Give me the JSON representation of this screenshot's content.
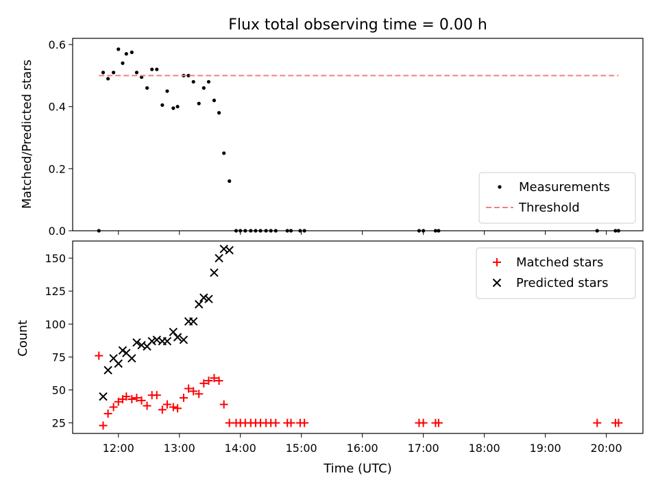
{
  "chart_data": [
    {
      "type": "scatter",
      "title": "Flux total observing time = 0.00 h",
      "ylabel": "Matched/Predicted stars",
      "xlabel": "",
      "ylim": [
        0,
        0.62
      ],
      "xlim": [
        11.25,
        20.6
      ],
      "yticks": [
        0.0,
        0.2,
        0.4,
        0.6
      ],
      "ytick_labels": [
        "0.0",
        "0.2",
        "0.4",
        "0.6"
      ],
      "legend_position": "lower-right",
      "series": [
        {
          "name": "Measurements",
          "marker": "dot",
          "color": "#000000",
          "points": [
            [
              11.68,
              0.0
            ],
            [
              11.75,
              0.51
            ],
            [
              11.83,
              0.49
            ],
            [
              11.92,
              0.51
            ],
            [
              12.0,
              0.585
            ],
            [
              12.07,
              0.54
            ],
            [
              12.13,
              0.57
            ],
            [
              12.22,
              0.575
            ],
            [
              12.3,
              0.51
            ],
            [
              12.38,
              0.495
            ],
            [
              12.47,
              0.46
            ],
            [
              12.55,
              0.52
            ],
            [
              12.63,
              0.52
            ],
            [
              12.72,
              0.405
            ],
            [
              12.8,
              0.45
            ],
            [
              12.9,
              0.395
            ],
            [
              12.97,
              0.4
            ],
            [
              13.07,
              0.5
            ],
            [
              13.15,
              0.5
            ],
            [
              13.23,
              0.48
            ],
            [
              13.32,
              0.41
            ],
            [
              13.4,
              0.46
            ],
            [
              13.48,
              0.48
            ],
            [
              13.57,
              0.42
            ],
            [
              13.65,
              0.38
            ],
            [
              13.73,
              0.25
            ],
            [
              13.82,
              0.16
            ],
            [
              13.93,
              0.0
            ],
            [
              14.0,
              0.0
            ],
            [
              14.08,
              0.0
            ],
            [
              14.17,
              0.0
            ],
            [
              14.25,
              0.0
            ],
            [
              14.33,
              0.0
            ],
            [
              14.42,
              0.0
            ],
            [
              14.5,
              0.0
            ],
            [
              14.58,
              0.0
            ],
            [
              14.77,
              0.0
            ],
            [
              14.83,
              0.0
            ],
            [
              14.98,
              0.0
            ],
            [
              15.05,
              0.0
            ],
            [
              16.93,
              0.0
            ],
            [
              17.0,
              0.0
            ],
            [
              17.2,
              0.0
            ],
            [
              17.25,
              0.0
            ],
            [
              19.85,
              0.0
            ],
            [
              20.15,
              0.0
            ],
            [
              20.2,
              0.0
            ]
          ]
        },
        {
          "name": "Threshold",
          "line_style": "dashed",
          "color": "#f08080",
          "points": [
            [
              11.68,
              0.5
            ],
            [
              20.2,
              0.5
            ]
          ]
        }
      ]
    },
    {
      "type": "scatter",
      "title": "",
      "ylabel": "Count",
      "xlabel": "Time (UTC)",
      "ylim": [
        17,
        163
      ],
      "xlim": [
        11.25,
        20.6
      ],
      "yticks": [
        25,
        50,
        75,
        100,
        125,
        150
      ],
      "ytick_labels": [
        "25",
        "50",
        "75",
        "100",
        "125",
        "150"
      ],
      "xticks": [
        12,
        13,
        14,
        15,
        16,
        17,
        18,
        19,
        20
      ],
      "xtick_labels": [
        "12:00",
        "13:00",
        "14:00",
        "15:00",
        "16:00",
        "17:00",
        "18:00",
        "19:00",
        "20:00"
      ],
      "legend_position": "upper-right",
      "series": [
        {
          "name": "Matched stars",
          "marker": "plus",
          "color": "#ff0000",
          "points": [
            [
              11.68,
              76
            ],
            [
              11.75,
              23
            ],
            [
              11.83,
              32
            ],
            [
              11.92,
              37
            ],
            [
              12.0,
              41
            ],
            [
              12.07,
              43
            ],
            [
              12.13,
              45
            ],
            [
              12.22,
              43
            ],
            [
              12.3,
              44
            ],
            [
              12.38,
              42
            ],
            [
              12.47,
              38
            ],
            [
              12.55,
              46
            ],
            [
              12.63,
              46
            ],
            [
              12.72,
              35
            ],
            [
              12.8,
              39
            ],
            [
              12.9,
              37
            ],
            [
              12.97,
              36
            ],
            [
              13.07,
              44
            ],
            [
              13.15,
              51
            ],
            [
              13.23,
              49
            ],
            [
              13.32,
              47
            ],
            [
              13.4,
              55
            ],
            [
              13.48,
              57
            ],
            [
              13.57,
              59
            ],
            [
              13.65,
              57
            ],
            [
              13.73,
              39
            ],
            [
              13.82,
              25
            ],
            [
              13.93,
              25
            ],
            [
              14.0,
              25
            ],
            [
              14.08,
              25
            ],
            [
              14.17,
              25
            ],
            [
              14.25,
              25
            ],
            [
              14.33,
              25
            ],
            [
              14.42,
              25
            ],
            [
              14.5,
              25
            ],
            [
              14.58,
              25
            ],
            [
              14.77,
              25
            ],
            [
              14.83,
              25
            ],
            [
              14.98,
              25
            ],
            [
              15.05,
              25
            ],
            [
              16.93,
              25
            ],
            [
              17.0,
              25
            ],
            [
              17.2,
              25
            ],
            [
              17.25,
              25
            ],
            [
              19.85,
              25
            ],
            [
              20.15,
              25
            ],
            [
              20.2,
              25
            ]
          ]
        },
        {
          "name": "Predicted stars",
          "marker": "cross",
          "color": "#000000",
          "points": [
            [
              11.75,
              45
            ],
            [
              11.83,
              65
            ],
            [
              11.92,
              74
            ],
            [
              12.0,
              70
            ],
            [
              12.07,
              80
            ],
            [
              12.13,
              78
            ],
            [
              12.22,
              74
            ],
            [
              12.3,
              86
            ],
            [
              12.38,
              84
            ],
            [
              12.47,
              83
            ],
            [
              12.55,
              87
            ],
            [
              12.63,
              88
            ],
            [
              12.72,
              87
            ],
            [
              12.8,
              87
            ],
            [
              12.9,
              94
            ],
            [
              12.97,
              90
            ],
            [
              13.07,
              88
            ],
            [
              13.15,
              102
            ],
            [
              13.23,
              102
            ],
            [
              13.32,
              115
            ],
            [
              13.4,
              120
            ],
            [
              13.48,
              119
            ],
            [
              13.57,
              139
            ],
            [
              13.65,
              150
            ],
            [
              13.73,
              157
            ],
            [
              13.82,
              156
            ]
          ]
        }
      ]
    }
  ]
}
